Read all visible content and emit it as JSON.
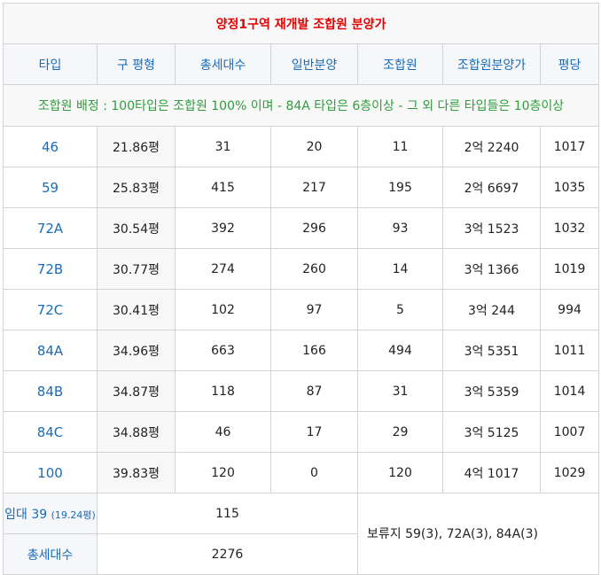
{
  "title": "양정1구역 재개발 조합원 분양가",
  "headers": [
    "타입",
    "구 평형",
    "총세대수",
    "일반분양",
    "조합원",
    "조합원분양가",
    "평당"
  ],
  "notice": "조합원 배정 : 100타입은 조합원 100% 이며 - 84A 타입은 6층이상 - 그 외 다른 타입들은 10층이상",
  "rows": [
    {
      "type": "46",
      "pyeong": "21.86평",
      "total": "31",
      "general": "20",
      "member": "11",
      "price": "2억 2240",
      "per_pyeong": "1017"
    },
    {
      "type": "59",
      "pyeong": "25.83평",
      "total": "415",
      "general": "217",
      "member": "195",
      "price": "2억 6697",
      "per_pyeong": "1035"
    },
    {
      "type": "72A",
      "pyeong": "30.54평",
      "total": "392",
      "general": "296",
      "member": "93",
      "price": "3억 1523",
      "per_pyeong": "1032"
    },
    {
      "type": "72B",
      "pyeong": "30.77평",
      "total": "274",
      "general": "260",
      "member": "14",
      "price": "3억 1366",
      "per_pyeong": "1019"
    },
    {
      "type": "72C",
      "pyeong": "30.41평",
      "total": "102",
      "general": "97",
      "member": "5",
      "price": "3억 244",
      "per_pyeong": "994"
    },
    {
      "type": "84A",
      "pyeong": "34.96평",
      "total": "663",
      "general": "166",
      "member": "494",
      "price": "3억 5351",
      "per_pyeong": "1011"
    },
    {
      "type": "84B",
      "pyeong": "34.87평",
      "total": "118",
      "general": "87",
      "member": "31",
      "price": "3억 5359",
      "per_pyeong": "1014"
    },
    {
      "type": "84C",
      "pyeong": "34.88평",
      "total": "46",
      "general": "17",
      "member": "29",
      "price": "3억 5125",
      "per_pyeong": "1007"
    },
    {
      "type": "100",
      "pyeong": "39.83평",
      "total": "120",
      "general": "0",
      "member": "120",
      "price": "4억 1017",
      "per_pyeong": "1029"
    }
  ],
  "rental": {
    "label": "임대 39",
    "size": "(19.24평)",
    "value": "115"
  },
  "grand_total": {
    "label": "총세대수",
    "value": "2276"
  },
  "reserve": "보류지 59(3), 72A(3), 84A(3)"
}
